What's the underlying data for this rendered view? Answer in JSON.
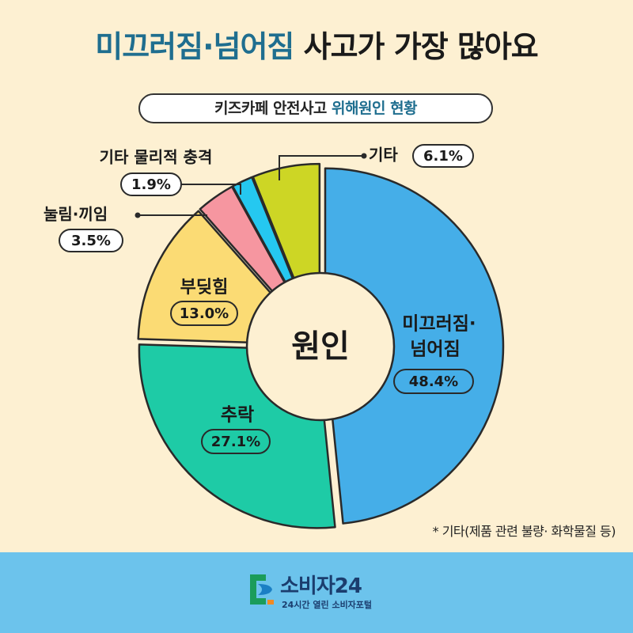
{
  "title": {
    "highlight": "미끄러짐·넘어짐",
    "rest": "사고가 가장 많아요"
  },
  "subtitle": {
    "normal": "키즈카페 안전사고",
    "highlight": "위해원인 현황"
  },
  "chart_data": {
    "type": "pie",
    "center_label": "원인",
    "unit": "%",
    "slices": [
      {
        "label": "미끄러짐·넘어짐",
        "value": 48.4,
        "display": "48.4%",
        "color": "#45aee8"
      },
      {
        "label": "추락",
        "value": 27.1,
        "display": "27.1%",
        "color": "#1ecba6"
      },
      {
        "label": "부딪힘",
        "value": 13.0,
        "display": "13.0%",
        "color": "#fbdb74"
      },
      {
        "label": "눌림·끼임",
        "value": 3.5,
        "display": "3.5%",
        "color": "#f696a0"
      },
      {
        "label": "기타 물리적 충격",
        "value": 1.9,
        "display": "1.9%",
        "color": "#25c8f0"
      },
      {
        "label": "기타",
        "value": 6.1,
        "display": "6.1%",
        "color": "#cdd625"
      }
    ]
  },
  "footnote": "* 기타(제품 관련 불량· 화학물질 등)",
  "footer": {
    "logo_name": "소비자24",
    "logo_tagline": "24시간 열린 소비자포털"
  }
}
